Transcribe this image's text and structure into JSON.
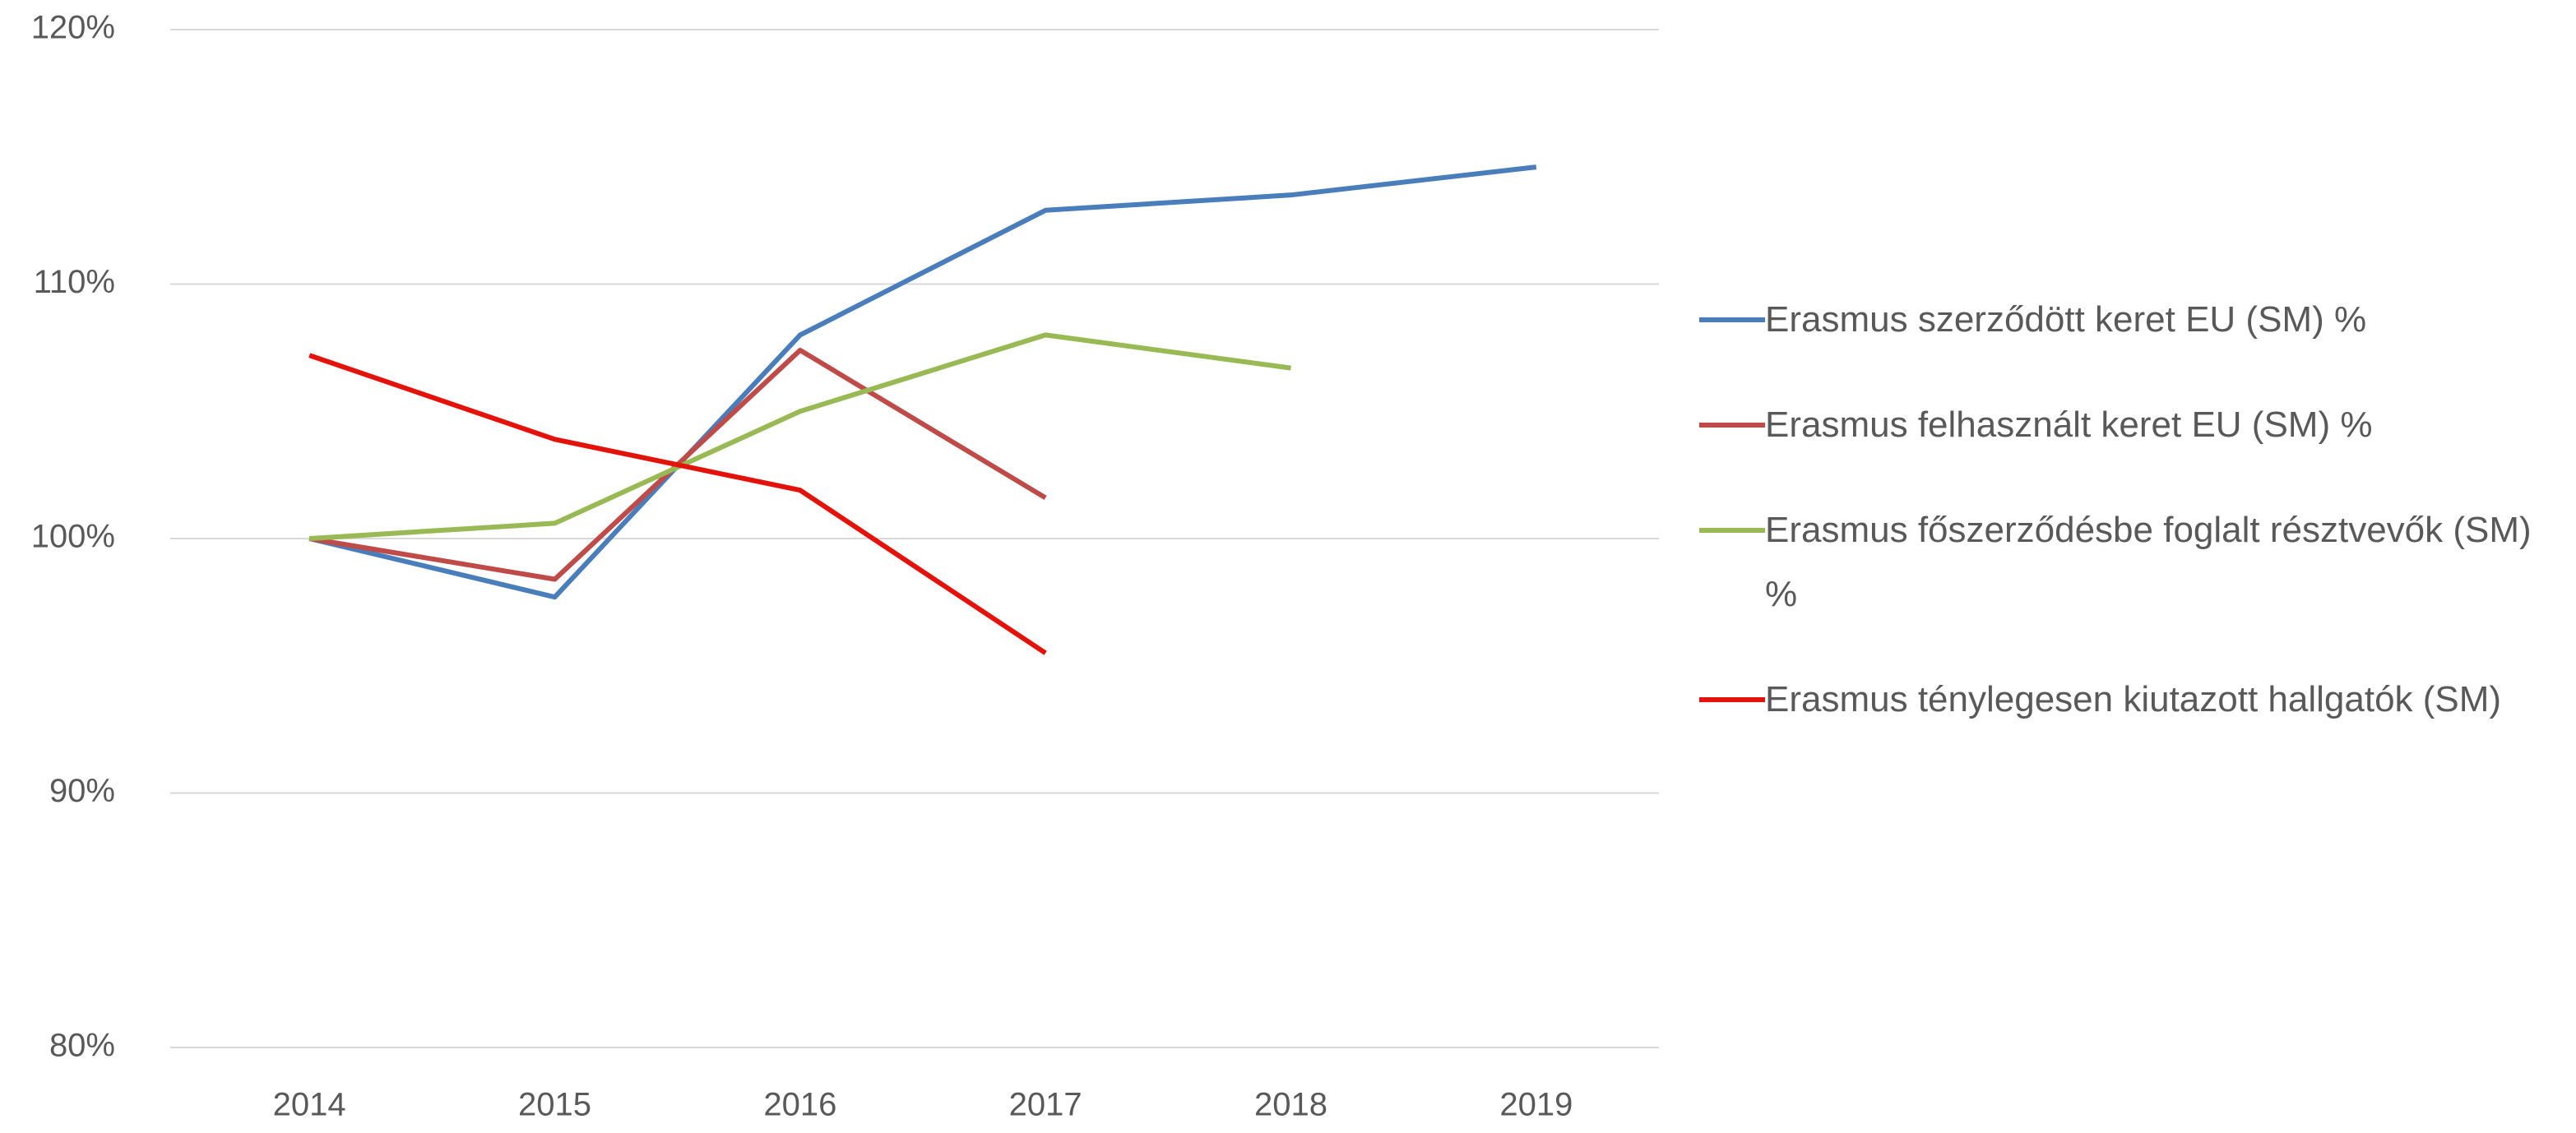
{
  "chart_data": {
    "type": "line",
    "categories": [
      "2014",
      "2015",
      "2016",
      "2017",
      "2018",
      "2019"
    ],
    "series": [
      {
        "name": "Erasmus szerződött keret EU (SM) %",
        "color": "#4a7ebb",
        "values": [
          100,
          97.7,
          108.0,
          112.9,
          113.5,
          114.6
        ]
      },
      {
        "name": "Erasmus felhasznált keret EU (SM) %",
        "color": "#be4b48",
        "values": [
          100,
          98.4,
          107.4,
          101.6,
          null,
          null
        ]
      },
      {
        "name": "Erasmus főszerződésbe foglalt résztvevők (SM) %",
        "color": "#98b954",
        "values": [
          100,
          100.6,
          105.0,
          108.0,
          106.7,
          null
        ]
      },
      {
        "name": "Erasmus ténylegesen kiutazott hallgatók (SM)",
        "color": "#e3120b",
        "values": [
          107.2,
          103.9,
          101.9,
          95.5,
          null,
          null
        ]
      }
    ],
    "ylim": [
      80,
      120
    ],
    "yticks": [
      {
        "value": 80,
        "label": "80%"
      },
      {
        "value": 90,
        "label": "90%"
      },
      {
        "value": 100,
        "label": "100%"
      },
      {
        "value": 110,
        "label": "110%"
      },
      {
        "value": 120,
        "label": "120%"
      }
    ],
    "grid": true,
    "legend": "right"
  }
}
